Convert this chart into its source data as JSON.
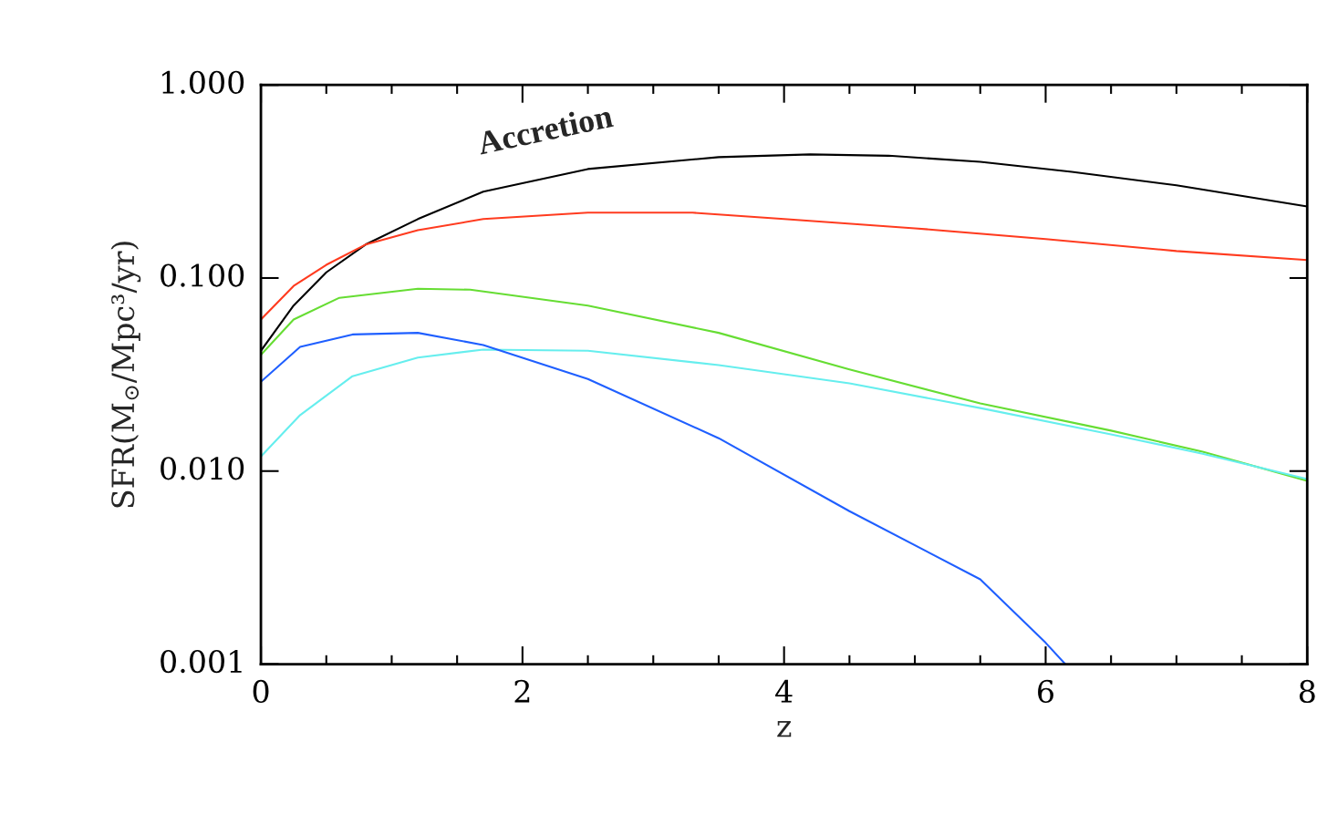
{
  "chart_data": {
    "type": "line",
    "xlabel": "z",
    "ylabel": "SFR(M$_{⊙}$/Mpc³/yr)",
    "annotations": [
      "Accretion"
    ],
    "log": "y",
    "grid": false,
    "legend": false,
    "xlim": [
      0,
      8
    ],
    "xticks": [
      0,
      2,
      4,
      6,
      8
    ],
    "ylim": [
      0.001,
      1.0
    ],
    "yticks": [
      {
        "value": 0.001,
        "label": "0.001"
      },
      {
        "value": 0.01,
        "label": "0.010"
      },
      {
        "value": 0.1,
        "label": "0.100"
      },
      {
        "value": 1.0,
        "label": "1.000"
      }
    ],
    "series": [
      {
        "color": "#000000",
        "x": [
          0,
          0.25,
          0.5,
          0.8,
          1.2,
          1.7,
          2.5,
          3.5,
          4.2,
          4.8,
          5.5,
          6.2,
          7,
          8
        ],
        "values": [
          0.042,
          0.072,
          0.107,
          0.149,
          0.202,
          0.28,
          0.367,
          0.423,
          0.437,
          0.43,
          0.4,
          0.355,
          0.302,
          0.235
        ]
      },
      {
        "color": "#ff3b1f",
        "x": [
          0,
          0.25,
          0.5,
          0.8,
          1.2,
          1.7,
          2.5,
          3.3,
          4,
          5,
          6,
          7,
          8
        ],
        "values": [
          0.061,
          0.091,
          0.117,
          0.149,
          0.177,
          0.202,
          0.218,
          0.218,
          0.202,
          0.181,
          0.159,
          0.138,
          0.124
        ]
      },
      {
        "color": "#66dd33",
        "x": [
          0,
          0.25,
          0.6,
          1.2,
          1.6,
          2.5,
          3.5,
          4.5,
          5.5,
          6.5,
          7.2,
          8
        ],
        "values": [
          0.04,
          0.061,
          0.079,
          0.088,
          0.087,
          0.072,
          0.052,
          0.0336,
          0.0224,
          0.0162,
          0.0126,
          0.0089
        ]
      },
      {
        "color": "#66eeee",
        "x": [
          0,
          0.3,
          0.7,
          1.2,
          1.7,
          2.5,
          3.5,
          4.5,
          5.5,
          6.5,
          7.2,
          8
        ],
        "values": [
          0.0119,
          0.0195,
          0.031,
          0.0387,
          0.0426,
          0.042,
          0.0354,
          0.0285,
          0.0212,
          0.0155,
          0.0123,
          0.0091
        ]
      },
      {
        "color": "#1f5fff",
        "x": [
          0,
          0.3,
          0.7,
          1.2,
          1.7,
          2.5,
          3.5,
          4.5,
          5.5,
          6.0,
          6.15
        ],
        "values": [
          0.029,
          0.044,
          0.051,
          0.052,
          0.045,
          0.03,
          0.0148,
          0.0062,
          0.00275,
          0.00129,
          0.001
        ]
      }
    ]
  }
}
